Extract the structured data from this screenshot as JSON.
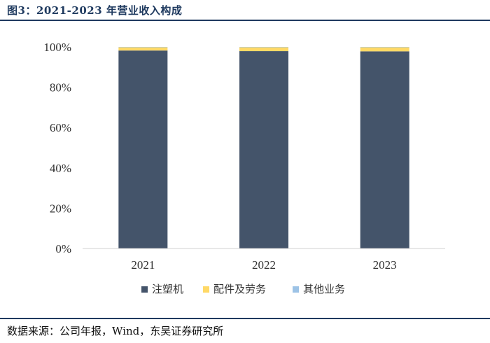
{
  "header": {
    "title": "图3：2021-2023 年营业收入构成"
  },
  "footer": {
    "source": "数据来源：公司年报，Wind，东吴证券研究所"
  },
  "chart_data": {
    "type": "bar",
    "stacked": true,
    "categories": [
      "2021",
      "2022",
      "2023"
    ],
    "series": [
      {
        "name": "注塑机",
        "values": [
          98.2,
          97.9,
          97.8
        ],
        "color": "#44546a"
      },
      {
        "name": "配件及劳务",
        "values": [
          1.6,
          1.9,
          2.0
        ],
        "color": "#ffd966"
      },
      {
        "name": "其他业务",
        "values": [
          0.2,
          0.2,
          0.2
        ],
        "color": "#9dc3e6"
      }
    ],
    "ylim": [
      0,
      100
    ],
    "yticks": [
      "0%",
      "20%",
      "40%",
      "60%",
      "80%",
      "100%"
    ],
    "legend_position": "bottom",
    "grid": false
  }
}
